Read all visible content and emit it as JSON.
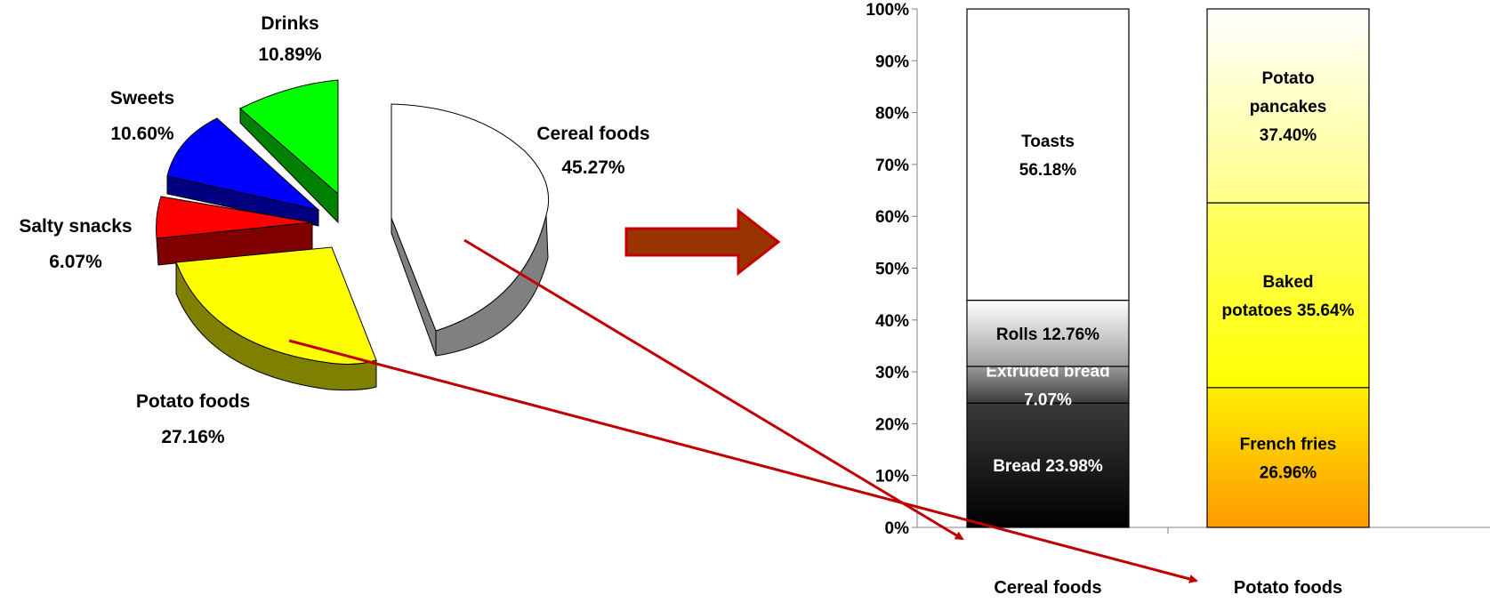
{
  "chart_data": [
    {
      "type": "pie",
      "style": "3d-exploded",
      "slices": [
        {
          "name": "Cereal foods",
          "value_label": "45.27%",
          "value": 45.27,
          "color": "#ffffff",
          "side_color": "#808080"
        },
        {
          "name": "Potato foods",
          "value_label": "27.16%",
          "value": 27.16,
          "color": "#ffff00",
          "side_color": "#808000"
        },
        {
          "name": "Salty snacks",
          "value_label": "6.07%",
          "value": 6.07,
          "color": "#ff0000",
          "side_color": "#800000"
        },
        {
          "name": "Sweets",
          "value_label": "10.60%",
          "value": 10.6,
          "color": "#0000ff",
          "side_color": "#000080"
        },
        {
          "name": "Drinks",
          "value_label": "10.89%",
          "value": 10.89,
          "color": "#00ff00",
          "side_color": "#008000"
        }
      ]
    },
    {
      "type": "bar",
      "stacked": "100%",
      "categories": [
        "Cereal foods",
        "Potato foods"
      ],
      "ylim": [
        0,
        100
      ],
      "ytick_labels": [
        "0%",
        "10%",
        "20%",
        "30%",
        "40%",
        "50%",
        "60%",
        "70%",
        "80%",
        "90%",
        "100%"
      ],
      "grid": false,
      "legend": "none",
      "stacks": [
        {
          "category": "Cereal foods",
          "segments": [
            {
              "name": "Bread",
              "value": 23.98,
              "label_lines": [
                "Bread 23.98%"
              ],
              "fill": "dark-gradient",
              "text_color": "#ffffff"
            },
            {
              "name": "Extruded bread",
              "value": 7.07,
              "label_lines": [
                "Extruded bread",
                "7.07%"
              ],
              "fill": "gray-gradient",
              "text_color": "#ffffff"
            },
            {
              "name": "Rolls",
              "value": 12.76,
              "label_lines": [
                "Rolls 12.76%"
              ],
              "fill": "light-gradient",
              "text_color": "#000000"
            },
            {
              "name": "Toasts",
              "value": 56.18,
              "label_lines": [
                "Toasts",
                "56.18%"
              ],
              "fill": "white",
              "text_color": "#000000"
            }
          ]
        },
        {
          "category": "Potato foods",
          "segments": [
            {
              "name": "French fries",
              "value": 26.96,
              "label_lines": [
                "French fries",
                "26.96%"
              ],
              "fill": "orange-gradient",
              "text_color": "#000000"
            },
            {
              "name": "Baked potatoes",
              "value": 35.64,
              "label_lines": [
                "Baked",
                "potatoes 35.64%"
              ],
              "fill": "yellow-gradient",
              "text_color": "#000000"
            },
            {
              "name": "Potato pancakes",
              "value": 37.4,
              "label_lines": [
                "Potato",
                "pancakes",
                "37.40%"
              ],
              "fill": "pale-yellow-gradient",
              "text_color": "#000000"
            }
          ]
        }
      ]
    }
  ],
  "colors": {
    "big_arrow_fill": "#993300",
    "big_arrow_stroke": "#c00000",
    "link_arrow": "#c00000"
  }
}
